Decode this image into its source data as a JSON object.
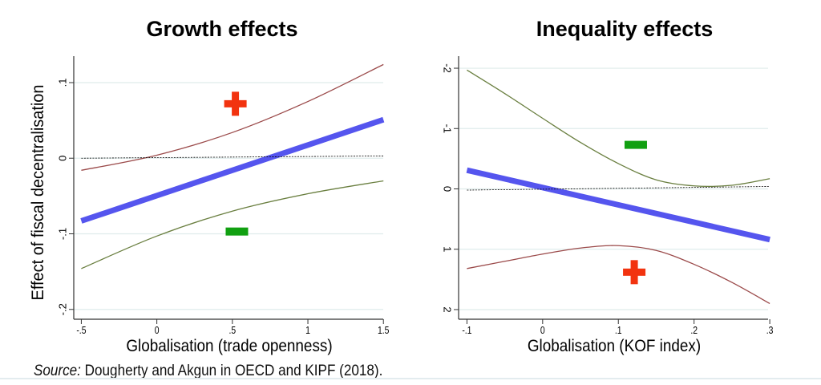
{
  "chart_data": [
    {
      "type": "line",
      "title": "Growth effects",
      "xlabel": "Globalisation (trade openness)",
      "ylabel": "Effect of fiscal decentralisation",
      "xlim": [
        -0.55,
        1.52
      ],
      "ylim": [
        -0.213,
        0.135
      ],
      "y_reversed": false,
      "xticks": [
        -0.5,
        0,
        0.5,
        1,
        1.5
      ],
      "xtick_labels": [
        "-.5",
        "0",
        ".5",
        "1",
        "1.5"
      ],
      "yticks": [
        0.1,
        0,
        -0.1,
        -0.2
      ],
      "ytick_labels": [
        ".1",
        "0",
        "-.1",
        "-.2"
      ],
      "grid": true,
      "series": [
        {
          "name": "estimate",
          "color": "#5555ee",
          "x": [
            -0.5,
            1.5
          ],
          "y": [
            -0.083,
            0.051
          ]
        },
        {
          "name": "upper bound",
          "color": "#9b4a4a",
          "x": [
            -0.5,
            0,
            0.5,
            1,
            1.5
          ],
          "y": [
            -0.016,
            0.004,
            0.034,
            0.075,
            0.124
          ]
        },
        {
          "name": "lower bound",
          "color": "#6a7f40",
          "x": [
            -0.5,
            0,
            0.5,
            1,
            1.5
          ],
          "y": [
            -0.146,
            -0.103,
            -0.07,
            -0.047,
            -0.03
          ]
        },
        {
          "name": "zero reference",
          "color": "#000000",
          "x": [
            -0.5,
            1.5
          ],
          "y": [
            0,
            0.003
          ]
        }
      ],
      "annotations": [
        {
          "symbol": "+",
          "color": "#f2330f",
          "x": 0.52,
          "y": 0.072
        },
        {
          "symbol": "-",
          "color": "#11a011",
          "x": 0.53,
          "y": -0.097
        }
      ]
    },
    {
      "type": "line",
      "title": "Inequality effects",
      "xlabel": "Globalisation (KOF index)",
      "ylabel": "",
      "xlim": [
        -0.111,
        0.302
      ],
      "ylim": [
        -2.2,
        2.16
      ],
      "y_reversed": true,
      "xticks": [
        -0.1,
        0,
        0.1,
        0.2,
        0.3
      ],
      "xtick_labels": [
        "-.1",
        "0",
        ".1",
        ".2",
        ".3"
      ],
      "yticks": [
        -2,
        -1,
        0,
        1,
        2
      ],
      "ytick_labels": [
        "-2",
        "-1",
        "0",
        "1",
        "2"
      ],
      "grid": true,
      "series": [
        {
          "name": "estimate",
          "color": "#5555ee",
          "x": [
            -0.1,
            0.3
          ],
          "y": [
            -0.31,
            0.84
          ]
        },
        {
          "name": "upper bound",
          "color": "#6a7f40",
          "x": [
            -0.1,
            -0.05,
            0,
            0.05,
            0.1,
            0.15,
            0.2,
            0.25,
            0.3
          ],
          "y": [
            -1.97,
            -1.58,
            -1.17,
            -0.77,
            -0.42,
            -0.15,
            -0.05,
            -0.06,
            -0.17
          ]
        },
        {
          "name": "lower bound",
          "color": "#9b4a4a",
          "x": [
            -0.1,
            -0.05,
            0,
            0.05,
            0.1,
            0.15,
            0.2,
            0.25,
            0.3
          ],
          "y": [
            1.32,
            1.2,
            1.08,
            0.98,
            0.94,
            1.02,
            1.25,
            1.55,
            1.9
          ]
        },
        {
          "name": "zero reference",
          "color": "#000000",
          "x": [
            -0.1,
            0.3
          ],
          "y": [
            0.02,
            -0.04
          ]
        }
      ],
      "annotations": [
        {
          "symbol": "-",
          "color": "#11a011",
          "x": 0.123,
          "y": -0.73
        },
        {
          "symbol": "+",
          "color": "#f2330f",
          "x": 0.121,
          "y": 1.38
        }
      ]
    }
  ],
  "source": {
    "label": "Source:",
    "text": " Dougherty and Akgun in OECD and KIPF (2018)."
  }
}
